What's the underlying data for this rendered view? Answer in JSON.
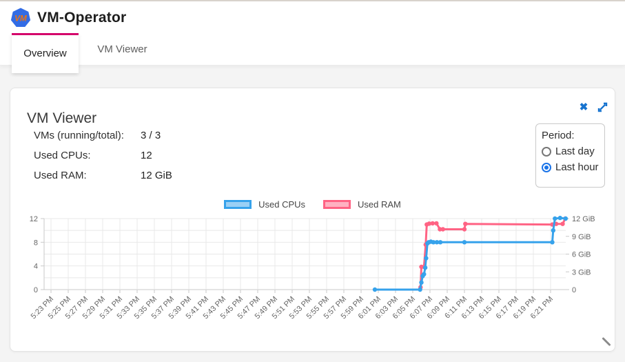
{
  "header": {
    "title": "VM-Operator",
    "logo_letters": "VM",
    "tabs": [
      {
        "label": "Overview",
        "active": true
      },
      {
        "label": "VM Viewer",
        "active": false
      }
    ]
  },
  "card": {
    "title": "VM Viewer",
    "stats": [
      {
        "label": "VMs (running/total):",
        "value": "3 / 3"
      },
      {
        "label": "Used CPUs:",
        "value": "12"
      },
      {
        "label": "Used RAM:",
        "value": "12 GiB"
      }
    ],
    "period": {
      "label": "Period:",
      "options": [
        {
          "label": "Last day",
          "selected": false
        },
        {
          "label": "Last hour",
          "selected": true
        }
      ]
    }
  },
  "icons": {
    "logo": "kubernetes-style-heptagon-with-VM",
    "close": "✖",
    "expand": "diagonal-expand-arrows",
    "resize": "diagonal-resize-handle"
  },
  "colors": {
    "tab_indicator": "#d4006a",
    "icon_blue": "#1673cf",
    "logo_blue": "#326ce5",
    "logo_letters_orange": "#ee7411",
    "grid": "#e8e8e8",
    "axis": "#c9c9c9",
    "tick_text": "#666666",
    "radio_selected": "#1a73e8"
  },
  "chart_data": {
    "type": "line",
    "title": "",
    "legend_position": "top-center",
    "grid": true,
    "x_axis": {
      "unit": "minutes after 5:23 PM",
      "tick_interval_minutes": 2,
      "range_minutes": [
        -0.8,
        59.8
      ],
      "tick_labels": [
        "5:23 PM",
        "5:25 PM",
        "5:27 PM",
        "5:29 PM",
        "5:31 PM",
        "5:33 PM",
        "5:35 PM",
        "5:37 PM",
        "5:39 PM",
        "5:41 PM",
        "5:43 PM",
        "5:45 PM",
        "5:47 PM",
        "5:49 PM",
        "5:51 PM",
        "5:53 PM",
        "5:55 PM",
        "5:57 PM",
        "5:59 PM",
        "6:01 PM",
        "6:03 PM",
        "6:05 PM",
        "6:07 PM",
        "6:09 PM",
        "6:11 PM",
        "6:13 PM",
        "6:15 PM",
        "6:17 PM",
        "6:19 PM",
        "6:21 PM"
      ]
    },
    "y_axis_left": {
      "range": [
        0,
        12
      ],
      "grid_step": 2,
      "tick_values": [
        0,
        4,
        8,
        12
      ],
      "tick_labels": [
        "0",
        "4",
        "8",
        "12"
      ]
    },
    "y_axis_right": {
      "range": [
        0,
        12
      ],
      "tick_values": [
        0,
        3,
        6,
        9,
        12
      ],
      "tick_labels": [
        "0",
        "3 GiB",
        "6 GiB",
        "9 GiB",
        "12 GiB"
      ]
    },
    "series": [
      {
        "name": "Used CPUs",
        "axis": "left",
        "color": "#36a2eb",
        "fill": "#9ad0f5",
        "points": [
          [
            37.6,
            0
          ],
          [
            42.85,
            0
          ],
          [
            43.0,
            1.2
          ],
          [
            43.15,
            2.3
          ],
          [
            43.3,
            2.6
          ],
          [
            43.45,
            3.7
          ],
          [
            43.55,
            5.3
          ],
          [
            43.7,
            7.8
          ],
          [
            43.85,
            8
          ],
          [
            44.1,
            8.1
          ],
          [
            44.4,
            8
          ],
          [
            44.8,
            8
          ],
          [
            45.2,
            8
          ],
          [
            48.0,
            8
          ],
          [
            58.2,
            8
          ],
          [
            58.3,
            10
          ],
          [
            58.5,
            12
          ],
          [
            59.1,
            12.1
          ],
          [
            59.75,
            12
          ]
        ]
      },
      {
        "name": "Used RAM",
        "axis": "right",
        "color": "#ff6384",
        "fill": "#ffb1c1",
        "points": [
          [
            42.9,
            0.4
          ],
          [
            43.0,
            3.85
          ],
          [
            43.3,
            3.85
          ],
          [
            43.5,
            7.6
          ],
          [
            43.62,
            11.0
          ],
          [
            43.9,
            11.15
          ],
          [
            44.3,
            11.2
          ],
          [
            44.75,
            11.2
          ],
          [
            45.15,
            10.2
          ],
          [
            45.5,
            10.2
          ],
          [
            48.0,
            10.2
          ],
          [
            48.1,
            11.1
          ],
          [
            58.2,
            11.0
          ],
          [
            58.65,
            11.1
          ],
          [
            59.4,
            11.1
          ],
          [
            59.7,
            12
          ]
        ]
      }
    ]
  }
}
